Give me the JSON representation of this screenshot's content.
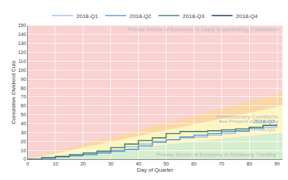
{
  "chart_data": {
    "type": "line",
    "line_style": "step",
    "x_title": "Day of Quarter",
    "y_title": "Cumulative Dividend Cuts",
    "x": [
      0,
      5,
      10,
      15,
      20,
      25,
      30,
      35,
      40,
      45,
      50,
      55,
      60,
      65,
      70,
      75,
      80,
      85,
      90
    ],
    "series": [
      {
        "name": "2018-Q1",
        "color": "#9dc3e6",
        "values": [
          0,
          1,
          2,
          4,
          6,
          8,
          10,
          14,
          17,
          20,
          22,
          24,
          25,
          27,
          29,
          31,
          34,
          36,
          37
        ]
      },
      {
        "name": "2018-Q2",
        "color": "#5b9bd5",
        "values": [
          0,
          1,
          3,
          4,
          5,
          7,
          9,
          11,
          15,
          19,
          22,
          25,
          27,
          29,
          31,
          32,
          35,
          38,
          39
        ]
      },
      {
        "name": "2018-Q3",
        "color": "#4a7f6e",
        "values": [
          0,
          2,
          3,
          5,
          7,
          9,
          13,
          17,
          21,
          24,
          29,
          31,
          31,
          32,
          33,
          34,
          36,
          38,
          38
        ]
      },
      {
        "name": "2018-Q4",
        "color": "#1f3864",
        "values": [
          null,
          null,
          null,
          null,
          null,
          null,
          null,
          null,
          null,
          null,
          null,
          null,
          null,
          null,
          null,
          null,
          null,
          null,
          null
        ]
      }
    ],
    "xlim": [
      0,
      92
    ],
    "xticks": [
      0,
      10,
      20,
      30,
      40,
      50,
      60,
      70,
      80,
      90
    ],
    "ylim": [
      0,
      150
    ],
    "yticks": [
      0,
      10,
      20,
      30,
      40,
      50,
      60,
      70,
      80,
      90,
      100,
      110,
      120,
      130,
      140,
      150
    ],
    "grid": true,
    "legend": "top",
    "zones": [
      {
        "lower_end": 60,
        "upper_end": 75,
        "color": "#fbd5a5"
      },
      {
        "lower_end": 30,
        "upper_end": 60,
        "color": "#fdf5bf"
      },
      {
        "lower_end": 0,
        "upper_end": 30,
        "color": "#d6edcf"
      }
    ],
    "annotations": [
      {
        "text": "Private Sector of Economy Is Likely Experiencing Contraction",
        "x": 91,
        "y": 146
      },
      {
        "text": "Recessionary Conditions",
        "x": 91,
        "y": 48
      },
      {
        "text": "Are Present in Economy",
        "x": 91,
        "y": 42
      },
      {
        "text": "Private Sector of Economy Is Relatively \"Healthy\"",
        "x": 91,
        "y": 5
      },
      {
        "text": "2018-Q2",
        "x": 90,
        "y": 42,
        "color": "#5b9bd5"
      },
      {
        "text": "2018-Q1",
        "x": 90,
        "y": 34,
        "color": "#9dc3e6"
      }
    ]
  }
}
